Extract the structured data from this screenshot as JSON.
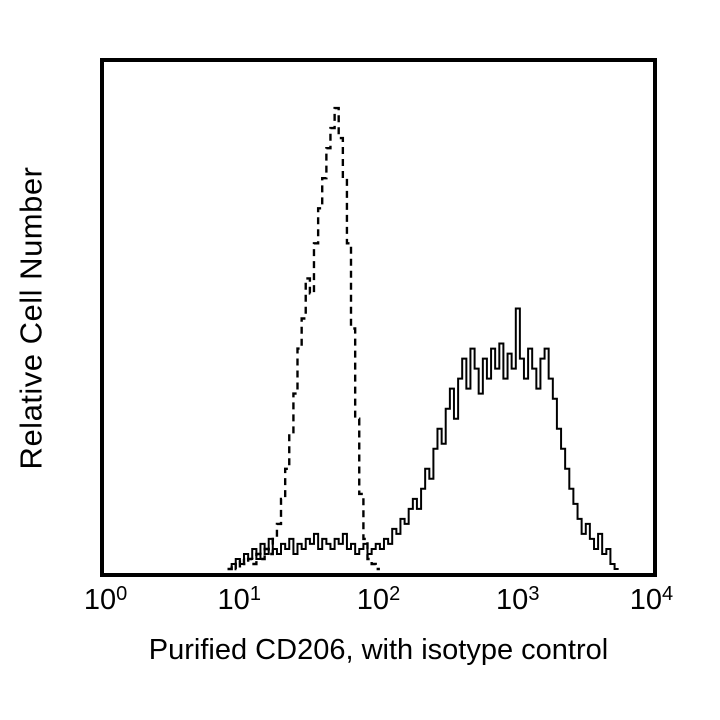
{
  "figure": {
    "background_color": "#ffffff",
    "frame_color": "#000000",
    "curve_color": "#000000"
  },
  "chart_data": {
    "type": "line",
    "subtype": "flow-cytometry-histogram-overlay",
    "title": "",
    "xlabel": "Purified CD206, with isotype control",
    "ylabel": "Relative Cell Number",
    "x_scale": "log10",
    "x_range_log": [
      0,
      4
    ],
    "x_ticks": [
      {
        "base": "10",
        "exp": "0"
      },
      {
        "base": "10",
        "exp": "1"
      },
      {
        "base": "10",
        "exp": "2"
      },
      {
        "base": "10",
        "exp": "3"
      },
      {
        "base": "10",
        "exp": "4"
      }
    ],
    "y_axis": {
      "ticks_visible": false,
      "range": [
        0,
        1
      ],
      "units": "relative"
    },
    "grid": false,
    "legend": "none",
    "bin_width_log": 0.03,
    "series": [
      {
        "name": "Isotype control",
        "line_style": "dashed",
        "color": "#000000",
        "start_log": 0.9,
        "peak_log": 1.68,
        "peak_height": 0.92,
        "heights": [
          0.0,
          0.01,
          0.0,
          0.02,
          0.01,
          0.02,
          0.01,
          0.03,
          0.02,
          0.04,
          0.03,
          0.06,
          0.09,
          0.14,
          0.2,
          0.27,
          0.35,
          0.44,
          0.5,
          0.58,
          0.55,
          0.65,
          0.72,
          0.78,
          0.84,
          0.88,
          0.92,
          0.86,
          0.78,
          0.65,
          0.48,
          0.3,
          0.15,
          0.06,
          0.02,
          0.01,
          0.0
        ]
      },
      {
        "name": "Purified CD206",
        "line_style": "solid",
        "color": "#000000",
        "start_log": 0.9,
        "peak_log": 3.0,
        "peak_height": 0.52,
        "heights": [
          0.0,
          0.01,
          0.02,
          0.01,
          0.03,
          0.02,
          0.04,
          0.02,
          0.05,
          0.03,
          0.06,
          0.04,
          0.03,
          0.05,
          0.04,
          0.06,
          0.03,
          0.05,
          0.04,
          0.06,
          0.05,
          0.07,
          0.04,
          0.06,
          0.05,
          0.04,
          0.06,
          0.05,
          0.07,
          0.04,
          0.05,
          0.03,
          0.04,
          0.05,
          0.03,
          0.04,
          0.05,
          0.04,
          0.06,
          0.05,
          0.08,
          0.07,
          0.1,
          0.09,
          0.12,
          0.14,
          0.12,
          0.16,
          0.2,
          0.18,
          0.24,
          0.28,
          0.25,
          0.32,
          0.36,
          0.3,
          0.38,
          0.42,
          0.36,
          0.44,
          0.4,
          0.35,
          0.42,
          0.38,
          0.44,
          0.4,
          0.45,
          0.38,
          0.43,
          0.4,
          0.52,
          0.42,
          0.38,
          0.44,
          0.4,
          0.36,
          0.42,
          0.44,
          0.38,
          0.34,
          0.28,
          0.24,
          0.2,
          0.16,
          0.13,
          0.1,
          0.07,
          0.09,
          0.06,
          0.04,
          0.07,
          0.03,
          0.04,
          0.01,
          0.0
        ]
      }
    ]
  }
}
